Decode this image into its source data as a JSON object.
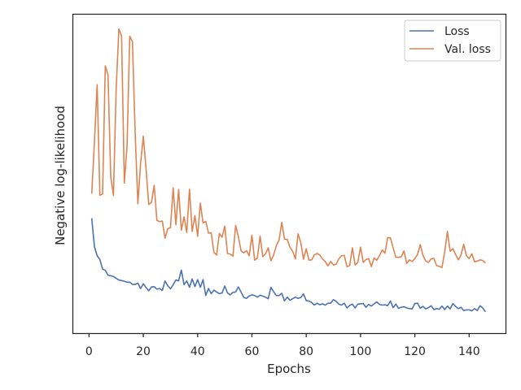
{
  "chart_data": {
    "type": "line",
    "title": "",
    "xlabel": "Epochs",
    "ylabel": "Negative log-likelihood",
    "xlim": [
      -5.8,
      153.4
    ],
    "ylim": [
      0,
      1
    ],
    "x_ticks": [
      0,
      20,
      40,
      60,
      80,
      100,
      120,
      140
    ],
    "x_tick_labels": [
      "0",
      "20",
      "40",
      "60",
      "80",
      "100",
      "120",
      "140"
    ],
    "y_ticks_visible": false,
    "grid": false,
    "legend_position": "top-right",
    "x": [
      1,
      2,
      3,
      4,
      5,
      6,
      7,
      8,
      9,
      10,
      11,
      12,
      13,
      14,
      15,
      16,
      17,
      18,
      19,
      20,
      21,
      22,
      23,
      24,
      25,
      26,
      27,
      28,
      29,
      30,
      31,
      32,
      33,
      34,
      35,
      36,
      37,
      38,
      39,
      40,
      41,
      42,
      43,
      44,
      45,
      46,
      47,
      48,
      49,
      50,
      51,
      52,
      53,
      54,
      55,
      56,
      57,
      58,
      59,
      60,
      61,
      62,
      63,
      64,
      65,
      66,
      67,
      68,
      69,
      70,
      71,
      72,
      73,
      74,
      75,
      76,
      77,
      78,
      79,
      80,
      81,
      82,
      83,
      84,
      85,
      86,
      87,
      88,
      89,
      90,
      91,
      92,
      93,
      94,
      95,
      96,
      97,
      98,
      99,
      100,
      101,
      102,
      103,
      104,
      105,
      106,
      107,
      108,
      109,
      110,
      111,
      112,
      113,
      114,
      115,
      116,
      117,
      118,
      119,
      120,
      121,
      122,
      123,
      124,
      125,
      126,
      127,
      128,
      129,
      130,
      131,
      132,
      133,
      134,
      135,
      136,
      137,
      138,
      139,
      140,
      141,
      142,
      143,
      144,
      145,
      146
    ],
    "series": [
      {
        "name": "Loss",
        "color": "#4c72b0",
        "values": [
          0.361,
          0.271,
          0.243,
          0.231,
          0.201,
          0.197,
          0.182,
          0.18,
          0.178,
          0.172,
          0.167,
          0.165,
          0.163,
          0.16,
          0.16,
          0.153,
          0.153,
          0.157,
          0.14,
          0.155,
          0.143,
          0.133,
          0.145,
          0.146,
          0.138,
          0.14,
          0.134,
          0.164,
          0.149,
          0.139,
          0.152,
          0.167,
          0.164,
          0.198,
          0.152,
          0.164,
          0.144,
          0.17,
          0.146,
          0.168,
          0.144,
          0.168,
          0.118,
          0.14,
          0.124,
          0.135,
          0.129,
          0.124,
          0.126,
          0.148,
          0.126,
          0.12,
          0.128,
          0.129,
          0.145,
          0.129,
          0.112,
          0.109,
          0.117,
          0.12,
          0.118,
          0.113,
          0.119,
          0.116,
          0.113,
          0.108,
          0.144,
          0.13,
          0.118,
          0.118,
          0.125,
          0.101,
          0.113,
          0.103,
          0.108,
          0.113,
          0.109,
          0.112,
          0.123,
          0.102,
          0.101,
          0.096,
          0.088,
          0.094,
          0.089,
          0.092,
          0.088,
          0.094,
          0.094,
          0.105,
          0.1,
          0.091,
          0.088,
          0.094,
          0.079,
          0.087,
          0.091,
          0.079,
          0.091,
          0.092,
          0.093,
          0.081,
          0.09,
          0.085,
          0.092,
          0.098,
          0.09,
          0.088,
          0.089,
          0.086,
          0.101,
          0.08,
          0.091,
          0.078,
          0.081,
          0.083,
          0.079,
          0.077,
          0.076,
          0.093,
          0.094,
          0.078,
          0.084,
          0.076,
          0.08,
          0.086,
          0.074,
          0.077,
          0.075,
          0.085,
          0.074,
          0.085,
          0.076,
          0.093,
          0.084,
          0.077,
          0.081,
          0.071,
          0.073,
          0.073,
          0.07,
          0.077,
          0.071,
          0.086,
          0.079,
          0.067
        ]
      },
      {
        "name": "Val. loss",
        "color": "#dd8452",
        "values": [
          0.438,
          0.601,
          0.78,
          0.433,
          0.437,
          0.839,
          0.811,
          0.491,
          0.432,
          0.767,
          0.955,
          0.933,
          0.471,
          0.586,
          0.932,
          0.915,
          0.626,
          0.406,
          0.534,
          0.618,
          0.517,
          0.404,
          0.41,
          0.464,
          0.354,
          0.35,
          0.352,
          0.298,
          0.328,
          0.331,
          0.456,
          0.34,
          0.451,
          0.323,
          0.365,
          0.316,
          0.452,
          0.319,
          0.369,
          0.304,
          0.408,
          0.346,
          0.351,
          0.314,
          0.315,
          0.254,
          0.245,
          0.313,
          0.301,
          0.336,
          0.25,
          0.248,
          0.242,
          0.338,
          0.303,
          0.259,
          0.252,
          0.259,
          0.243,
          0.307,
          0.229,
          0.236,
          0.305,
          0.24,
          0.249,
          0.268,
          0.227,
          0.245,
          0.275,
          0.292,
          0.348,
          0.295,
          0.294,
          0.27,
          0.257,
          0.233,
          0.312,
          0.284,
          0.232,
          0.265,
          0.229,
          0.23,
          0.246,
          0.25,
          0.245,
          0.233,
          0.225,
          0.211,
          0.225,
          0.214,
          0.216,
          0.233,
          0.243,
          0.244,
          0.209,
          0.212,
          0.268,
          0.214,
          0.222,
          0.27,
          0.222,
          0.231,
          0.234,
          0.209,
          0.236,
          0.229,
          0.244,
          0.261,
          0.251,
          0.3,
          0.299,
          0.268,
          0.238,
          0.238,
          0.24,
          0.258,
          0.219,
          0.23,
          0.225,
          0.234,
          0.247,
          0.278,
          0.244,
          0.227,
          0.222,
          0.233,
          0.235,
          0.212,
          0.21,
          0.206,
          0.256,
          0.319,
          0.257,
          0.265,
          0.247,
          0.23,
          0.245,
          0.279,
          0.243,
          0.234,
          0.249,
          0.224,
          0.226,
          0.23,
          0.228,
          0.22
        ]
      }
    ]
  }
}
